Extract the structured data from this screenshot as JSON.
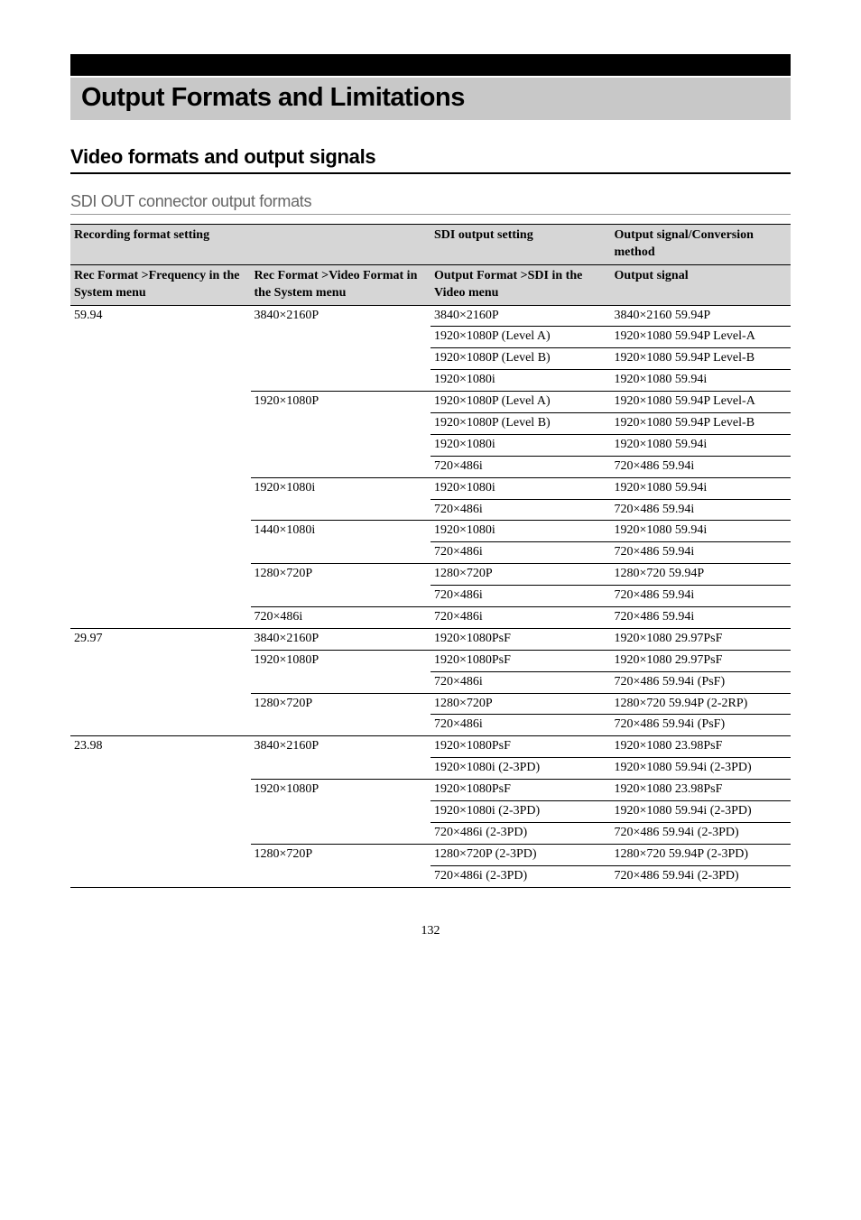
{
  "page_title": "Output Formats and Limitations",
  "section_heading": "Video formats and output signals",
  "subsection_heading": "SDI OUT connector output formats",
  "page_number": "132",
  "table": {
    "type": "table",
    "header_row1": {
      "recording_format_setting": "Recording format setting",
      "sdi_output_setting": "SDI output setting",
      "output_signal_conversion": "Output signal/Conversion method"
    },
    "header_row2": {
      "rec_format_frequency": "Rec Format >Frequency in the System menu",
      "rec_format_video": "Rec Format >Video Format in the System menu",
      "output_format_sdi": "Output Format >SDI in the Video menu",
      "output_signal": "Output signal"
    },
    "rows": [
      {
        "freq": "59.94",
        "freq_rowspan": 15,
        "video": "3840×2160P",
        "video_rowspan": 4,
        "sdi": "3840×2160P",
        "out": "3840×2160 59.94P"
      },
      {
        "sdi": "1920×1080P (Level A)",
        "out": "1920×1080 59.94P Level-A"
      },
      {
        "sdi": "1920×1080P (Level B)",
        "out": "1920×1080 59.94P Level-B"
      },
      {
        "sdi": "1920×1080i",
        "out": "1920×1080 59.94i"
      },
      {
        "video": "1920×1080P",
        "video_rowspan": 4,
        "sdi": "1920×1080P (Level A)",
        "out": "1920×1080 59.94P Level-A"
      },
      {
        "sdi": "1920×1080P (Level B)",
        "out": "1920×1080 59.94P Level-B"
      },
      {
        "sdi": "1920×1080i",
        "out": "1920×1080 59.94i"
      },
      {
        "sdi": "720×486i",
        "out": "720×486 59.94i"
      },
      {
        "video": "1920×1080i",
        "video_rowspan": 2,
        "sdi": "1920×1080i",
        "out": "1920×1080 59.94i"
      },
      {
        "sdi": "720×486i",
        "out": "720×486 59.94i"
      },
      {
        "video": "1440×1080i",
        "video_rowspan": 2,
        "sdi": "1920×1080i",
        "out": "1920×1080 59.94i"
      },
      {
        "sdi": "720×486i",
        "out": "720×486 59.94i"
      },
      {
        "video": "1280×720P",
        "video_rowspan": 2,
        "sdi": "1280×720P",
        "out": "1280×720 59.94P"
      },
      {
        "sdi": "720×486i",
        "out": "720×486 59.94i"
      },
      {
        "video": "720×486i",
        "video_rowspan": 1,
        "sdi": "720×486i",
        "out": "720×486 59.94i"
      },
      {
        "freq": "29.97",
        "freq_rowspan": 5,
        "video": "3840×2160P",
        "video_rowspan": 1,
        "sdi": "1920×1080PsF",
        "out": "1920×1080 29.97PsF"
      },
      {
        "video": "1920×1080P",
        "video_rowspan": 2,
        "sdi": "1920×1080PsF",
        "out": "1920×1080 29.97PsF"
      },
      {
        "sdi": "720×486i",
        "out": "720×486 59.94i (PsF)"
      },
      {
        "video": "1280×720P",
        "video_rowspan": 2,
        "sdi": "1280×720P",
        "out": "1280×720 59.94P (2-2RP)"
      },
      {
        "sdi": "720×486i",
        "out": "720×486 59.94i (PsF)"
      },
      {
        "freq": "23.98",
        "freq_rowspan": 7,
        "video": "3840×2160P",
        "video_rowspan": 2,
        "sdi": "1920×1080PsF",
        "out": "1920×1080 23.98PsF"
      },
      {
        "sdi": "1920×1080i (2-3PD)",
        "out": "1920×1080 59.94i (2-3PD)"
      },
      {
        "video": "1920×1080P",
        "video_rowspan": 3,
        "sdi": "1920×1080PsF",
        "out": "1920×1080 23.98PsF"
      },
      {
        "sdi": "1920×1080i (2-3PD)",
        "out": "1920×1080 59.94i (2-3PD)"
      },
      {
        "sdi": "720×486i (2-3PD)",
        "out": "720×486 59.94i (2-3PD)"
      },
      {
        "video": "1280×720P",
        "video_rowspan": 2,
        "sdi": "1280×720P (2-3PD)",
        "out": "1280×720 59.94P (2-3PD)"
      },
      {
        "sdi": "720×486i (2-3PD)",
        "out": "720×486 59.94i (2-3PD)"
      }
    ],
    "colors": {
      "header_bg": "#d6d6d6",
      "border": "#000000",
      "text": "#000000",
      "h3_text": "#666666",
      "h3_border": "#999999"
    }
  }
}
